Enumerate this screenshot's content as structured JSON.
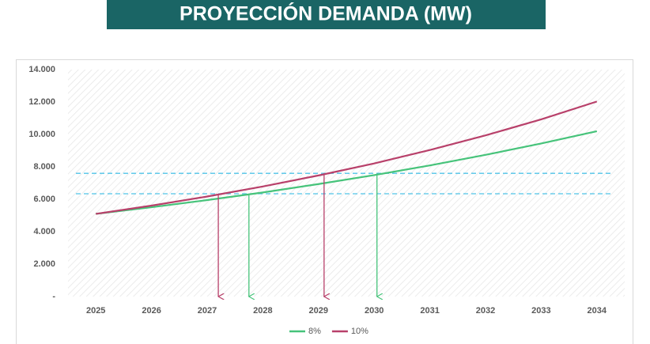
{
  "chart_data": {
    "type": "line",
    "title": "PROYECCIÓN DEMANDA (MW)",
    "x": [
      2025,
      2026,
      2027,
      2028,
      2029,
      2030,
      2031,
      2032,
      2033,
      2034
    ],
    "xlim": [
      2024.5,
      2034.5
    ],
    "xticks": [
      2025,
      2026,
      2027,
      2028,
      2029,
      2030,
      2031,
      2032,
      2033,
      2034
    ],
    "ylim": [
      0,
      14000
    ],
    "yticks": [
      {
        "value": 0,
        "label": "-"
      },
      {
        "value": 2000,
        "label": "2.000"
      },
      {
        "value": 4000,
        "label": "4.000"
      },
      {
        "value": 6000,
        "label": "6.000"
      },
      {
        "value": 8000,
        "label": "8.000"
      },
      {
        "value": 10000,
        "label": "10.000"
      },
      {
        "value": 12000,
        "label": "12.000"
      },
      {
        "value": 14000,
        "label": "14.000"
      }
    ],
    "grid": false,
    "series": [
      {
        "name": "8%",
        "color": "#46c37a",
        "values": [
          5100,
          5510,
          5950,
          6420,
          6940,
          7490,
          8090,
          8740,
          9440,
          10200
        ]
      },
      {
        "name": "10%",
        "color": "#b8406a",
        "values": [
          5100,
          5610,
          6170,
          6790,
          7470,
          8210,
          9040,
          9940,
          10930,
          12030
        ]
      }
    ],
    "hlines": {
      "color": "#4fc3e8",
      "values": [
        6340,
        7600
      ]
    },
    "arrows": [
      {
        "x": 2027.2,
        "y": 6340,
        "color": "#b8406a"
      },
      {
        "x": 2027.75,
        "y": 6340,
        "color": "#46c37a"
      },
      {
        "x": 2029.1,
        "y": 7600,
        "color": "#b8406a"
      },
      {
        "x": 2030.05,
        "y": 7600,
        "color": "#46c37a"
      }
    ],
    "legend": "bottom"
  }
}
